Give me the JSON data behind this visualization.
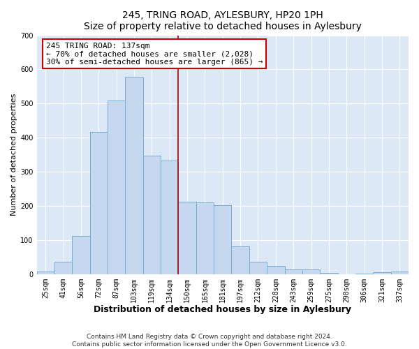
{
  "title": "245, TRING ROAD, AYLESBURY, HP20 1PH",
  "subtitle": "Size of property relative to detached houses in Aylesbury",
  "xlabel": "Distribution of detached houses by size in Aylesbury",
  "ylabel": "Number of detached properties",
  "bar_labels": [
    "25sqm",
    "41sqm",
    "56sqm",
    "72sqm",
    "87sqm",
    "103sqm",
    "119sqm",
    "134sqm",
    "150sqm",
    "165sqm",
    "181sqm",
    "197sqm",
    "212sqm",
    "228sqm",
    "243sqm",
    "259sqm",
    "275sqm",
    "290sqm",
    "306sqm",
    "321sqm",
    "337sqm"
  ],
  "bar_values": [
    8,
    37,
    112,
    416,
    508,
    578,
    347,
    333,
    212,
    210,
    202,
    82,
    37,
    25,
    14,
    14,
    3,
    0,
    1,
    5,
    7
  ],
  "bar_color": "#c5d8f0",
  "bar_edge_color": "#7aadd4",
  "vline_x_idx": 7,
  "vline_color": "#aa0000",
  "annotation_title": "245 TRING ROAD: 137sqm",
  "annotation_line1": "← 70% of detached houses are smaller (2,028)",
  "annotation_line2": "30% of semi-detached houses are larger (865) →",
  "annotation_box_color": "#ffffff",
  "annotation_box_edge": "#cc0000",
  "ylim": [
    0,
    700
  ],
  "yticks": [
    0,
    100,
    200,
    300,
    400,
    500,
    600,
    700
  ],
  "footer1": "Contains HM Land Registry data © Crown copyright and database right 2024.",
  "footer2": "Contains public sector information licensed under the Open Government Licence v3.0.",
  "fig_facecolor": "#ffffff",
  "plot_facecolor": "#dce8f5",
  "grid_color": "#ffffff",
  "title_fontsize": 10,
  "subtitle_fontsize": 9,
  "xlabel_fontsize": 9,
  "ylabel_fontsize": 8,
  "tick_fontsize": 7,
  "annotation_fontsize": 8,
  "footer_fontsize": 6.5
}
